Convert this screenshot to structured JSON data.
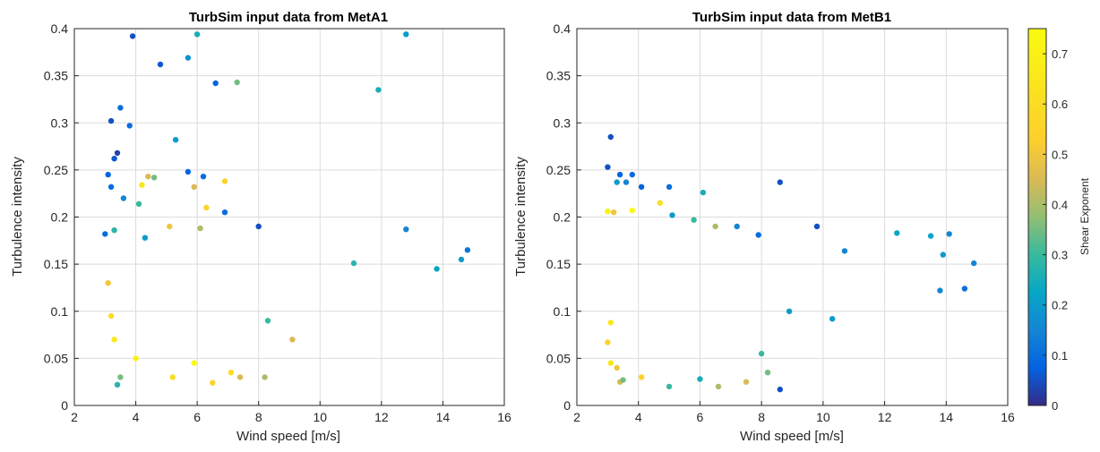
{
  "chart_data": [
    {
      "type": "scatter",
      "title": "TurbSim input data from MetA1",
      "xlabel": "Wind speed [m/s]",
      "ylabel": "Turbulence intensity",
      "xlim": [
        2,
        16
      ],
      "ylim": [
        0,
        0.4
      ],
      "xticks": [
        2,
        4,
        6,
        8,
        10,
        12,
        14,
        16
      ],
      "yticks": [
        0,
        0.05,
        0.1,
        0.15,
        0.2,
        0.25,
        0.3,
        0.35,
        0.4
      ],
      "xtick_labels": [
        "2",
        "4",
        "6",
        "8",
        "10",
        "12",
        "14",
        "16"
      ],
      "ytick_labels": [
        "0",
        "0.05",
        "0.1",
        "0.15",
        "0.2",
        "0.25",
        "0.3",
        "0.35",
        "0.4"
      ],
      "grid": true,
      "colormap": "parula",
      "points": [
        [
          3.9,
          0.392,
          0.05
        ],
        [
          6.0,
          0.394,
          0.25
        ],
        [
          12.8,
          0.394,
          0.2
        ],
        [
          4.8,
          0.362,
          0.06
        ],
        [
          5.7,
          0.369,
          0.18
        ],
        [
          6.6,
          0.342,
          0.08
        ],
        [
          7.3,
          0.343,
          0.35
        ],
        [
          11.9,
          0.335,
          0.25
        ],
        [
          3.5,
          0.316,
          0.1
        ],
        [
          3.2,
          0.302,
          0.05
        ],
        [
          3.8,
          0.297,
          0.1
        ],
        [
          5.3,
          0.282,
          0.2
        ],
        [
          3.4,
          0.268,
          0.03
        ],
        [
          3.3,
          0.262,
          0.06
        ],
        [
          3.1,
          0.245,
          0.08
        ],
        [
          4.2,
          0.234,
          0.65
        ],
        [
          5.7,
          0.248,
          0.08
        ],
        [
          6.2,
          0.243,
          0.1
        ],
        [
          6.9,
          0.238,
          0.55
        ],
        [
          4.4,
          0.243,
          0.45
        ],
        [
          4.6,
          0.242,
          0.35
        ],
        [
          5.9,
          0.232,
          0.45
        ],
        [
          3.2,
          0.232,
          0.1
        ],
        [
          3.6,
          0.22,
          0.15
        ],
        [
          4.1,
          0.214,
          0.3
        ],
        [
          6.3,
          0.21,
          0.55
        ],
        [
          6.9,
          0.205,
          0.1
        ],
        [
          8.0,
          0.19,
          0.05
        ],
        [
          12.8,
          0.187,
          0.15
        ],
        [
          3.0,
          0.182,
          0.1
        ],
        [
          3.3,
          0.186,
          0.28
        ],
        [
          4.3,
          0.178,
          0.2
        ],
        [
          5.1,
          0.19,
          0.5
        ],
        [
          6.1,
          0.188,
          0.4
        ],
        [
          14.8,
          0.165,
          0.12
        ],
        [
          14.6,
          0.155,
          0.2
        ],
        [
          11.1,
          0.151,
          0.28
        ],
        [
          13.8,
          0.145,
          0.22
        ],
        [
          3.1,
          0.13,
          0.5
        ],
        [
          3.2,
          0.095,
          0.6
        ],
        [
          3.3,
          0.07,
          0.65
        ],
        [
          3.5,
          0.03,
          0.35
        ],
        [
          3.4,
          0.022,
          0.28
        ],
        [
          4.0,
          0.05,
          0.7
        ],
        [
          5.2,
          0.03,
          0.6
        ],
        [
          5.9,
          0.045,
          0.75
        ],
        [
          6.5,
          0.024,
          0.55
        ],
        [
          7.1,
          0.035,
          0.6
        ],
        [
          7.4,
          0.03,
          0.45
        ],
        [
          8.2,
          0.03,
          0.4
        ],
        [
          9.1,
          0.07,
          0.45
        ],
        [
          8.3,
          0.09,
          0.3
        ]
      ]
    },
    {
      "type": "scatter",
      "title": "TurbSim input data from MetB1",
      "xlabel": "Wind speed [m/s]",
      "ylabel": "Turbulence intensity",
      "xlim": [
        2,
        16
      ],
      "ylim": [
        0,
        0.4
      ],
      "xticks": [
        2,
        4,
        6,
        8,
        10,
        12,
        14,
        16
      ],
      "yticks": [
        0,
        0.05,
        0.1,
        0.15,
        0.2,
        0.25,
        0.3,
        0.35,
        0.4
      ],
      "xtick_labels": [
        "2",
        "4",
        "6",
        "8",
        "10",
        "12",
        "14",
        "16"
      ],
      "ytick_labels": [
        "0",
        "0.05",
        "0.1",
        "0.15",
        "0.2",
        "0.25",
        "0.3",
        "0.35",
        "0.4"
      ],
      "grid": true,
      "colormap": "parula",
      "points": [
        [
          3.1,
          0.285,
          0.05
        ],
        [
          3.0,
          0.253,
          0.05
        ],
        [
          3.4,
          0.245,
          0.08
        ],
        [
          3.8,
          0.245,
          0.1
        ],
        [
          3.3,
          0.237,
          0.2
        ],
        [
          3.6,
          0.237,
          0.15
        ],
        [
          4.1,
          0.232,
          0.08
        ],
        [
          5.0,
          0.232,
          0.1
        ],
        [
          6.1,
          0.226,
          0.25
        ],
        [
          8.6,
          0.237,
          0.05
        ],
        [
          4.7,
          0.215,
          0.6
        ],
        [
          3.0,
          0.206,
          0.7
        ],
        [
          3.8,
          0.207,
          0.75
        ],
        [
          3.2,
          0.205,
          0.5
        ],
        [
          5.1,
          0.202,
          0.2
        ],
        [
          5.8,
          0.197,
          0.3
        ],
        [
          7.2,
          0.19,
          0.15
        ],
        [
          6.5,
          0.19,
          0.4
        ],
        [
          9.8,
          0.19,
          0.05
        ],
        [
          7.9,
          0.181,
          0.1
        ],
        [
          12.4,
          0.183,
          0.22
        ],
        [
          13.5,
          0.18,
          0.22
        ],
        [
          14.1,
          0.182,
          0.15
        ],
        [
          14.9,
          0.151,
          0.15
        ],
        [
          13.9,
          0.16,
          0.2
        ],
        [
          10.7,
          0.164,
          0.15
        ],
        [
          14.6,
          0.124,
          0.1
        ],
        [
          13.8,
          0.122,
          0.15
        ],
        [
          3.1,
          0.088,
          0.65
        ],
        [
          3.0,
          0.067,
          0.55
        ],
        [
          3.1,
          0.045,
          0.65
        ],
        [
          3.3,
          0.04,
          0.5
        ],
        [
          3.4,
          0.025,
          0.45
        ],
        [
          3.5,
          0.027,
          0.35
        ],
        [
          4.1,
          0.03,
          0.55
        ],
        [
          5.0,
          0.02,
          0.3
        ],
        [
          6.0,
          0.028,
          0.25
        ],
        [
          6.6,
          0.02,
          0.4
        ],
        [
          7.5,
          0.025,
          0.45
        ],
        [
          8.6,
          0.017,
          0.05
        ],
        [
          8.2,
          0.035,
          0.35
        ],
        [
          8.0,
          0.055,
          0.3
        ],
        [
          8.9,
          0.1,
          0.2
        ],
        [
          10.3,
          0.092,
          0.2
        ]
      ]
    }
  ],
  "colorbar": {
    "label": "Shear Exponent",
    "min": 0,
    "max": 0.75,
    "ticks": [
      0,
      0.1,
      0.2,
      0.3,
      0.4,
      0.5,
      0.6,
      0.7
    ],
    "tick_labels": [
      "0",
      "0.1",
      "0.2",
      "0.3",
      "0.4",
      "0.5",
      "0.6",
      "0.7"
    ]
  }
}
